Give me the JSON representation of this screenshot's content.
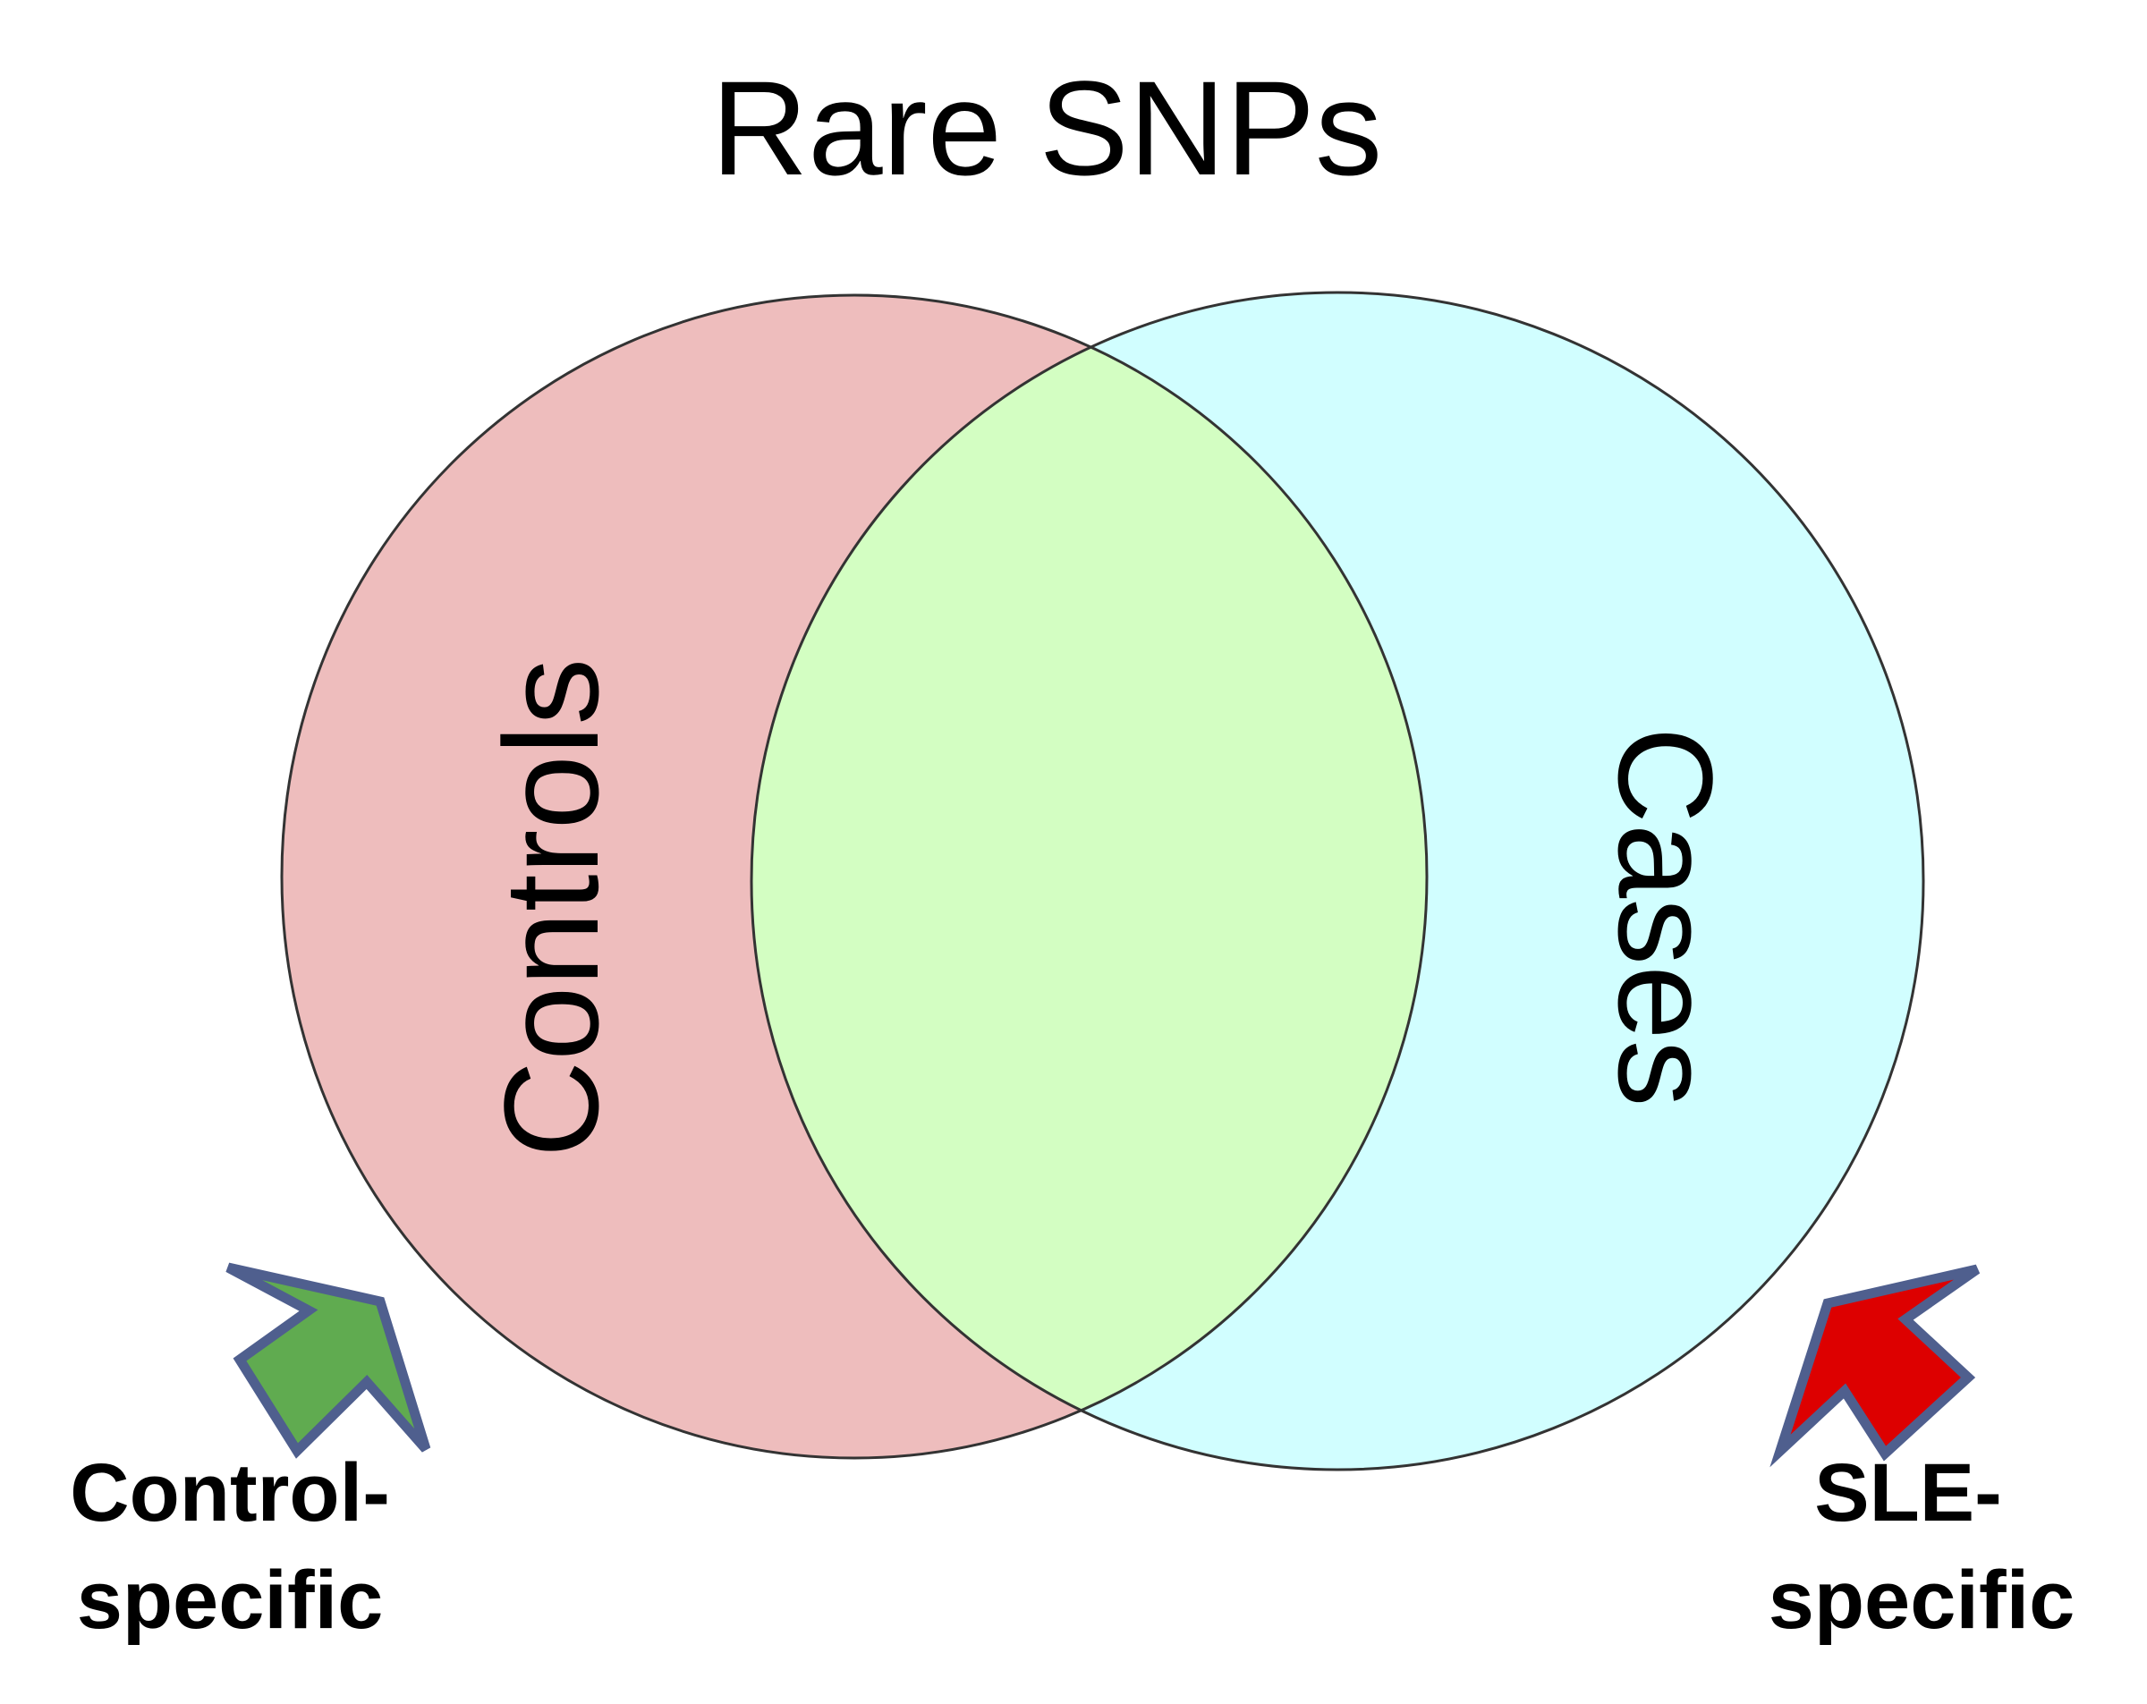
{
  "title": "Rare SNPs",
  "sets": {
    "controls": {
      "label": "Controls",
      "color": "#EEBDBD"
    },
    "cases": {
      "label": "Cases",
      "color": "#D1FEFF"
    },
    "overlap": {
      "color": "#D3FEC2"
    }
  },
  "callouts": {
    "control_specific": {
      "line1": "Control-",
      "line2": "specific",
      "arrow_color": "#60AB50",
      "border_color": "#4F5F8E"
    },
    "sle_specific": {
      "line1": "SLE-",
      "line2": "specific",
      "arrow_color": "#DD0000",
      "border_color": "#4F5F8E"
    }
  }
}
